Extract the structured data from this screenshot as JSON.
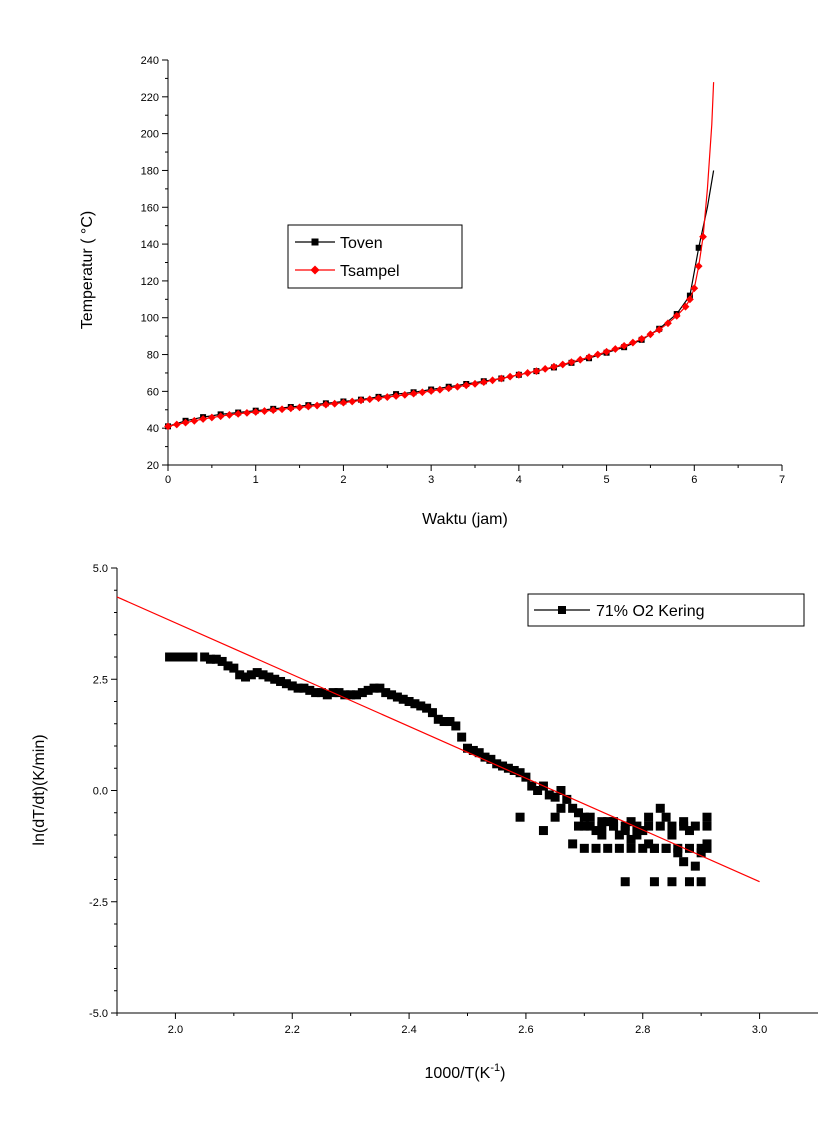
{
  "chart_data": [
    {
      "type": "line",
      "title": "",
      "xlabel": "Waktu (jam)",
      "ylabel": "Temperatur (  °C)",
      "xlim": [
        0,
        7
      ],
      "ylim": [
        20,
        240
      ],
      "xticks": [
        "0",
        "1",
        "2",
        "3",
        "4",
        "5",
        "6",
        "7"
      ],
      "yticks": [
        "20",
        "40",
        "60",
        "80",
        "100",
        "120",
        "140",
        "160",
        "180",
        "200",
        "220",
        "240"
      ],
      "legend_position": "center-left",
      "grid": false,
      "series": [
        {
          "name": "Toven",
          "color": "#000000",
          "marker": "square",
          "x": [
            0.0,
            0.2,
            0.4,
            0.6,
            0.8,
            1.0,
            1.2,
            1.4,
            1.6,
            1.8,
            2.0,
            2.2,
            2.4,
            2.6,
            2.8,
            3.0,
            3.2,
            3.4,
            3.6,
            3.8,
            4.0,
            4.2,
            4.4,
            4.6,
            4.8,
            5.0,
            5.2,
            5.4,
            5.6,
            5.8,
            5.95,
            6.05,
            6.15,
            6.22
          ],
          "y": [
            41,
            44,
            46,
            47.5,
            48.5,
            49.5,
            50.5,
            51.5,
            52.5,
            53.5,
            54.5,
            55.5,
            57,
            58.5,
            59.5,
            61,
            62.5,
            64,
            65.5,
            67,
            69,
            71,
            73,
            75.5,
            78,
            81,
            84,
            88,
            94,
            102,
            112,
            138,
            160,
            180
          ]
        },
        {
          "name": "Tsampel",
          "color": "#ff0000",
          "marker": "diamond",
          "x": [
            0.0,
            0.1,
            0.2,
            0.3,
            0.4,
            0.5,
            0.6,
            0.7,
            0.8,
            0.9,
            1.0,
            1.1,
            1.2,
            1.3,
            1.4,
            1.5,
            1.6,
            1.7,
            1.8,
            1.9,
            2.0,
            2.1,
            2.2,
            2.3,
            2.4,
            2.5,
            2.6,
            2.7,
            2.8,
            2.9,
            3.0,
            3.1,
            3.2,
            3.3,
            3.4,
            3.5,
            3.6,
            3.7,
            3.8,
            3.9,
            4.0,
            4.1,
            4.2,
            4.3,
            4.4,
            4.5,
            4.6,
            4.7,
            4.8,
            4.9,
            5.0,
            5.1,
            5.2,
            5.3,
            5.4,
            5.5,
            5.6,
            5.7,
            5.8,
            5.9,
            5.95,
            6.0,
            6.05,
            6.1,
            6.15,
            6.2,
            6.22
          ],
          "y": [
            41,
            42,
            43,
            44,
            45,
            45.8,
            46.5,
            47.2,
            47.8,
            48.3,
            48.8,
            49.3,
            49.8,
            50.3,
            50.8,
            51.3,
            51.8,
            52.3,
            52.8,
            53.3,
            53.9,
            54.5,
            55.1,
            55.7,
            56.3,
            56.9,
            57.5,
            58.1,
            58.8,
            59.5,
            60.2,
            60.9,
            61.7,
            62.5,
            63.3,
            64.1,
            65,
            66,
            67,
            68,
            69,
            70,
            71,
            72.2,
            73.4,
            74.6,
            75.9,
            77.2,
            78.6,
            80,
            81.5,
            83,
            84.7,
            86.5,
            88.5,
            91,
            93.5,
            97,
            101,
            106,
            110,
            116,
            128,
            144,
            170,
            205,
            228
          ]
        }
      ]
    },
    {
      "type": "scatter",
      "title": "",
      "xlabel": "1000/T(K",
      "xlabel_sup": "-1",
      "xlabel_end": ")",
      "ylabel": "ln(dT/dt)(K/min)",
      "xlim": [
        1.9,
        3.1
      ],
      "ylim": [
        -5.0,
        5.0
      ],
      "xticks": [
        "2.0",
        "2.2",
        "2.4",
        "2.6",
        "2.8",
        "3.0"
      ],
      "yticks": [
        "-5.0",
        "-2.5",
        "0.0",
        "2.5",
        "5.0"
      ],
      "legend_position": "top-right",
      "grid": false,
      "series": [
        {
          "name": "71% O2 Kering",
          "color": "#000000",
          "marker": "square",
          "x": [
            1.99,
            2.0,
            2.01,
            2.02,
            2.03,
            2.05,
            2.06,
            2.07,
            2.08,
            2.09,
            2.1,
            2.11,
            2.12,
            2.13,
            2.14,
            2.15,
            2.16,
            2.17,
            2.18,
            2.19,
            2.2,
            2.21,
            2.22,
            2.23,
            2.24,
            2.25,
            2.26,
            2.27,
            2.28,
            2.29,
            2.3,
            2.31,
            2.32,
            2.33,
            2.34,
            2.35,
            2.36,
            2.37,
            2.38,
            2.39,
            2.4,
            2.41,
            2.42,
            2.43,
            2.44,
            2.45,
            2.46,
            2.47,
            2.48,
            2.49,
            2.5,
            2.51,
            2.52,
            2.53,
            2.54,
            2.55,
            2.56,
            2.57,
            2.58,
            2.59,
            2.6,
            2.61,
            2.62,
            2.63,
            2.64,
            2.65,
            2.66,
            2.67,
            2.68,
            2.69,
            2.7,
            2.71,
            2.72,
            2.73,
            2.74,
            2.75,
            2.76,
            2.77,
            2.78,
            2.79,
            2.8,
            2.81,
            2.82,
            2.83,
            2.84,
            2.85,
            2.86,
            2.87,
            2.88,
            2.89,
            2.9,
            2.91
          ],
          "y": [
            3.0,
            3.0,
            3.0,
            3.0,
            3.0,
            3.0,
            2.95,
            2.95,
            2.9,
            2.8,
            2.75,
            2.6,
            2.55,
            2.6,
            2.65,
            2.6,
            2.55,
            2.5,
            2.45,
            2.4,
            2.35,
            2.3,
            2.3,
            2.25,
            2.2,
            2.2,
            2.15,
            2.2,
            2.2,
            2.15,
            2.15,
            2.15,
            2.2,
            2.25,
            2.3,
            2.3,
            2.2,
            2.15,
            2.1,
            2.05,
            2.0,
            1.95,
            1.9,
            1.85,
            1.75,
            1.6,
            1.55,
            1.55,
            1.45,
            1.2,
            0.95,
            0.9,
            0.85,
            0.75,
            0.7,
            0.6,
            0.55,
            0.5,
            0.45,
            0.4,
            0.3,
            0.1,
            0.0,
            0.1,
            -0.1,
            -0.15,
            0.0,
            -0.2,
            -0.4,
            -0.5,
            -0.8,
            -0.6,
            -0.9,
            -1.0,
            -0.7,
            -0.8,
            -1.0,
            -0.9,
            -1.1,
            -1.0,
            -0.9,
            -1.2,
            -1.3,
            -0.4,
            -1.3,
            -1.0,
            -1.4,
            -1.6,
            -0.9,
            -1.7,
            -1.4,
            -1.2
          ],
          "scatter_extra_x": [
            2.59,
            2.63,
            2.66,
            2.68,
            2.7,
            2.72,
            2.74,
            2.76,
            2.78,
            2.8,
            2.82,
            2.84,
            2.86,
            2.88,
            2.9,
            2.91,
            2.69,
            2.71,
            2.73,
            2.75,
            2.77,
            2.79,
            2.81,
            2.83,
            2.85,
            2.87,
            2.89,
            2.91,
            2.77,
            2.82,
            2.85,
            2.88,
            2.9,
            2.65,
            2.7,
            2.73,
            2.75,
            2.78,
            2.81,
            2.84,
            2.87,
            2.91
          ],
          "scatter_extra_y": [
            -0.6,
            -0.9,
            -0.4,
            -1.2,
            -1.3,
            -1.3,
            -1.3,
            -1.3,
            -1.3,
            -1.3,
            -1.3,
            -1.3,
            -1.3,
            -1.3,
            -1.3,
            -1.3,
            -0.8,
            -0.8,
            -0.8,
            -0.8,
            -0.8,
            -0.8,
            -0.8,
            -0.8,
            -0.8,
            -0.8,
            -0.8,
            -0.8,
            -2.05,
            -2.05,
            -2.05,
            -2.05,
            -2.05,
            -0.6,
            -0.6,
            -0.7,
            -0.7,
            -0.7,
            -0.6,
            -0.6,
            -0.7,
            -0.6
          ]
        },
        {
          "name": "",
          "color": "#ff0000",
          "marker": "none",
          "fit_line": true,
          "x": [
            1.9,
            3.0
          ],
          "y": [
            4.35,
            -2.05
          ]
        }
      ]
    }
  ]
}
